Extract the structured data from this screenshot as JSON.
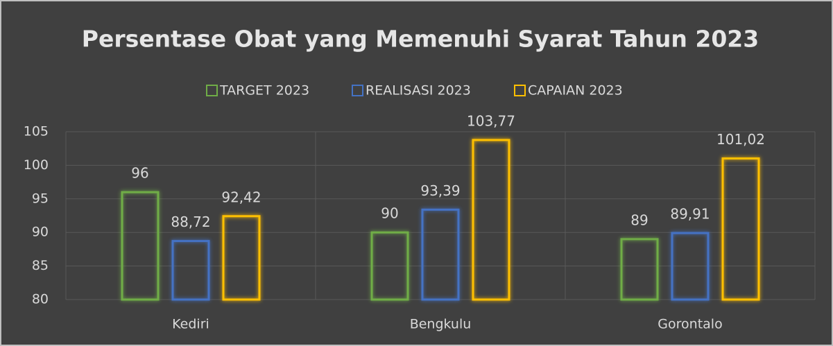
{
  "chart_data": {
    "type": "bar",
    "title": "Persentase Obat yang Memenuhi Syarat Tahun 2023",
    "categories": [
      "Kediri",
      "Bengkulu",
      "Gorontalo"
    ],
    "series": [
      {
        "name": "TARGET 2023",
        "color": "#70ad47",
        "values": [
          96,
          90,
          89
        ],
        "value_labels": [
          "96",
          "90",
          "89"
        ]
      },
      {
        "name": "REALISASI 2023",
        "color": "#4472c4",
        "values": [
          88.72,
          93.39,
          89.91
        ],
        "value_labels": [
          "88,72",
          "93,39",
          "89,91"
        ]
      },
      {
        "name": "CAPAIAN 2023",
        "color": "#ffc000",
        "values": [
          92.42,
          103.77,
          101.02
        ],
        "value_labels": [
          "92,42",
          "103,77",
          "101,02"
        ]
      }
    ],
    "ylim": [
      80,
      105
    ],
    "yticks": [
      80,
      85,
      90,
      95,
      100,
      105
    ],
    "grid": true,
    "legend": "top"
  }
}
